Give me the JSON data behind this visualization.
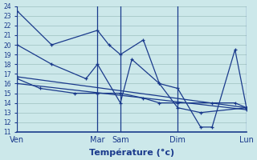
{
  "title": "",
  "xlabel": "Température (°c)",
  "background_color": "#cce8ea",
  "grid_color": "#aacccc",
  "line_color": "#1a3a8c",
  "ylim": [
    11,
    24
  ],
  "yticks": [
    11,
    12,
    13,
    14,
    15,
    16,
    17,
    18,
    19,
    20,
    21,
    22,
    23,
    24
  ],
  "xlim": [
    0,
    10
  ],
  "day_positions": [
    0,
    3.5,
    4.5,
    7.0,
    10.0
  ],
  "day_labels": [
    "Ven",
    "Mar",
    "Sam",
    "Dim",
    "Lun"
  ],
  "vline_positions": [
    0,
    3.5,
    4.5,
    7.0,
    10.0
  ],
  "series": [
    {
      "x": [
        0,
        1.5,
        3.5,
        4.0,
        4.5,
        5.5,
        6.2,
        7.0,
        8.0,
        10.0
      ],
      "y": [
        23.5,
        20.0,
        21.5,
        20.0,
        19.0,
        20.5,
        16.0,
        13.5,
        13.0,
        13.5
      ]
    },
    {
      "x": [
        0,
        1.5,
        3.0,
        3.5,
        4.5,
        5.0,
        6.2,
        7.0,
        8.0,
        8.5,
        9.5,
        10.0
      ],
      "y": [
        20.0,
        18.0,
        16.5,
        18.0,
        14.0,
        18.5,
        16.0,
        15.5,
        11.5,
        11.5,
        19.5,
        13.5
      ]
    },
    {
      "x": [
        0,
        10.0
      ],
      "y": [
        16.7,
        13.5
      ]
    },
    {
      "x": [
        0,
        10.0
      ],
      "y": [
        16.0,
        13.3
      ]
    },
    {
      "x": [
        0,
        1.0,
        2.5,
        3.5,
        4.5,
        5.5,
        6.2,
        7.0,
        8.5,
        9.5,
        10.0
      ],
      "y": [
        16.5,
        15.5,
        15.0,
        15.0,
        15.0,
        14.5,
        14.0,
        14.0,
        14.0,
        14.0,
        13.5
      ]
    }
  ]
}
